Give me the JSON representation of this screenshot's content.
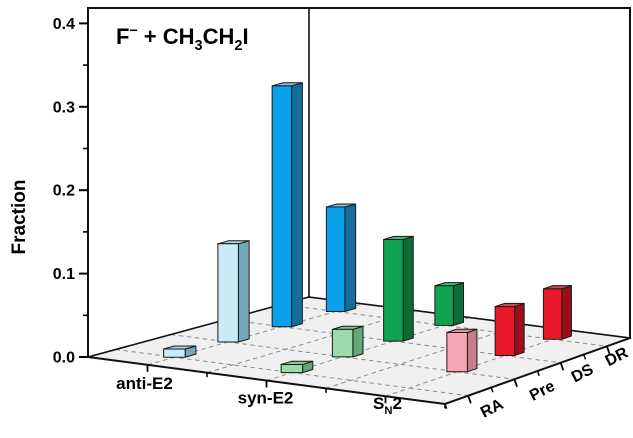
{
  "chart_data": {
    "type": "bar3d",
    "title_parts": [
      [
        "F",
        "n"
      ],
      [
        "−",
        "sup"
      ],
      [
        " + CH",
        "n"
      ],
      [
        "3",
        "sub"
      ],
      [
        "CH",
        "n"
      ],
      [
        "2",
        "sub"
      ],
      [
        "I",
        "n"
      ]
    ],
    "title_plain": "F− + CH3CH2I",
    "ylabel": "Fraction",
    "ylim": [
      0,
      0.4
    ],
    "ytick_labels": [
      "0.0",
      "0.1",
      "0.2",
      "0.3",
      "0.4"
    ],
    "x_categories": [
      {
        "id": "anti-E2",
        "label_parts": [
          [
            "anti-E2",
            "n"
          ]
        ]
      },
      {
        "id": "syn-E2",
        "label_parts": [
          [
            "syn-E2",
            "n"
          ]
        ]
      },
      {
        "id": "SN2",
        "label_parts": [
          [
            "S",
            "n"
          ],
          [
            "N",
            "sub"
          ],
          [
            "2",
            "n"
          ]
        ]
      }
    ],
    "depth_categories": [
      "RA",
      "Pre",
      "DS",
      "DR"
    ],
    "series": [
      {
        "channel": "anti-E2",
        "values": [
          0.01,
          0.125,
          0.32,
          0.145
        ],
        "light": {
          "front": "#C9EAF7",
          "top": "#A6D6E8",
          "side": "#74A7BD"
        },
        "dark": {
          "front": "#0AA0EC",
          "top": "#7FBEDE",
          "side": "#136E9E"
        }
      },
      {
        "channel": "syn-E2",
        "values": [
          0.01,
          0.035,
          0.135,
          0.055
        ],
        "light": {
          "front": "#9CD9AC",
          "top": "#7FC794",
          "side": "#63A878"
        },
        "dark": {
          "front": "#10A351",
          "top": "#4DB377",
          "side": "#0B6D35"
        }
      },
      {
        "channel": "SN2",
        "values": [
          0,
          0.05,
          0.065,
          0.07
        ],
        "light": {
          "front": "#F7A6B4",
          "top": "#E492A2",
          "side": "#C87E8C"
        },
        "dark": {
          "front": "#E9192B",
          "top": "#D04552",
          "side": "#9B0F18"
        }
      }
    ],
    "shade_by_depth": {
      "light_rows": [
        "RA",
        "Pre"
      ],
      "dark_rows": [
        "DS",
        "DR"
      ]
    },
    "grid": "dashed floor grid",
    "legend_position": "none",
    "colors": {
      "floor": "#F1F0F1",
      "wall": "#FFFFFF",
      "grid_line": "#8C8C8C",
      "axis": "#111111"
    }
  }
}
